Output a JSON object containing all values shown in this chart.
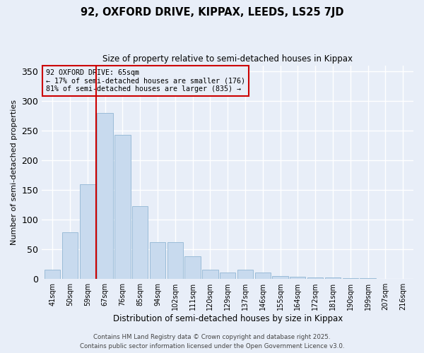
{
  "title": "92, OXFORD DRIVE, KIPPAX, LEEDS, LS25 7JD",
  "subtitle": "Size of property relative to semi-detached houses in Kippax",
  "xlabel": "Distribution of semi-detached houses by size in Kippax",
  "ylabel": "Number of semi-detached properties",
  "bins": [
    "41sqm",
    "50sqm",
    "59sqm",
    "67sqm",
    "76sqm",
    "85sqm",
    "94sqm",
    "102sqm",
    "111sqm",
    "120sqm",
    "129sqm",
    "137sqm",
    "146sqm",
    "155sqm",
    "164sqm",
    "172sqm",
    "181sqm",
    "190sqm",
    "199sqm",
    "207sqm",
    "216sqm"
  ],
  "bar_values": [
    15,
    78,
    160,
    280,
    243,
    123,
    62,
    62,
    38,
    15,
    10,
    15,
    10,
    5,
    3,
    2,
    2,
    1,
    1,
    0,
    0
  ],
  "bar_color": "#c8daee",
  "bar_edge_color": "#9bbcd8",
  "bg_color": "#e8eef8",
  "grid_color": "#ffffff",
  "vline_x": 3,
  "vline_color": "#cc0000",
  "annotation_title": "92 OXFORD DRIVE: 65sqm",
  "annotation_line1": "← 17% of semi-detached houses are smaller (176)",
  "annotation_line2": "81% of semi-detached houses are larger (835) →",
  "annotation_box_color": "#cc0000",
  "ylim": [
    0,
    360
  ],
  "yticks": [
    0,
    50,
    100,
    150,
    200,
    250,
    300,
    350
  ],
  "footer1": "Contains HM Land Registry data © Crown copyright and database right 2025.",
  "footer2": "Contains public sector information licensed under the Open Government Licence v3.0."
}
